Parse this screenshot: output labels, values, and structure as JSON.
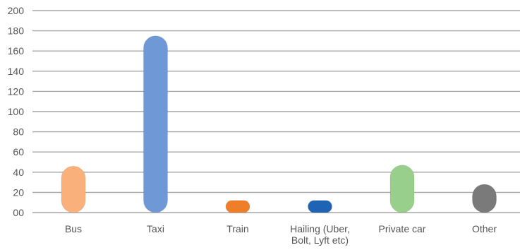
{
  "chart_data": {
    "type": "bar",
    "title": "",
    "xlabel": "",
    "ylabel": "",
    "ylim": [
      0,
      200
    ],
    "y_ticks": [
      0,
      20,
      40,
      60,
      80,
      100,
      120,
      140,
      160,
      180,
      200
    ],
    "y_tick_labels": [
      "00",
      "20",
      "40",
      "60",
      "80",
      "100",
      "120",
      "140",
      "160",
      "180",
      "200"
    ],
    "grid": true,
    "legend": "none",
    "bar_style": "rounded-capsule",
    "categories": [
      [
        "Bus"
      ],
      [
        "Taxi"
      ],
      [
        "Train"
      ],
      [
        "Hailing (Uber,",
        "Bolt, Lyft etc)"
      ],
      [
        "Private car"
      ],
      [
        "Other"
      ]
    ],
    "values": [
      46,
      175,
      12,
      12,
      47,
      28
    ],
    "colors": [
      "#f9b07a",
      "#6f98d6",
      "#f07d28",
      "#1f63b5",
      "#98cf8a",
      "#7a7a7a"
    ]
  }
}
